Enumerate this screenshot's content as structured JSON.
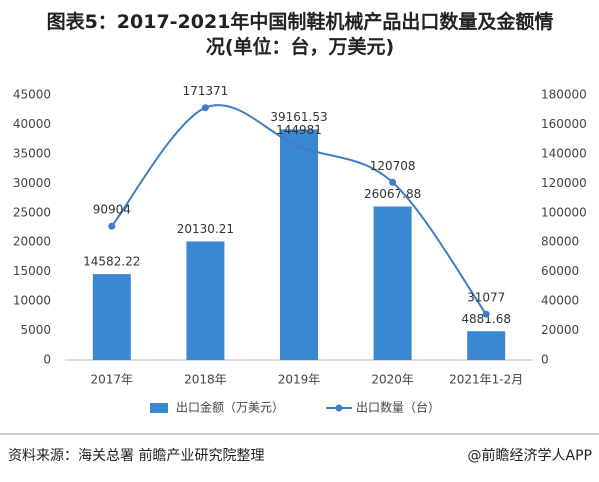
{
  "chart_data": {
    "type": "bar-line",
    "title": "图表5：2017-2021年中国制鞋机械产品出口数量及金额情况(单位：台，万美元)",
    "categories": [
      "2017年",
      "2018年",
      "2019年",
      "2020年",
      "2021年1-2月"
    ],
    "series": [
      {
        "name": "出口金额（万美元）",
        "type": "bar",
        "color": "#3a87d4",
        "values": [
          14582.22,
          20130.21,
          39161.53,
          26067.88,
          4881.68
        ]
      },
      {
        "name": "出口数量（台）",
        "type": "line",
        "axis": "y2",
        "color": "#3f7ec4",
        "values": [
          90904,
          171371,
          144981,
          120708,
          31077
        ]
      }
    ],
    "ylim": [
      0,
      45000
    ],
    "yticks": [
      0,
      5000,
      10000,
      15000,
      20000,
      25000,
      30000,
      35000,
      40000,
      45000
    ],
    "y2lim": [
      0,
      180000
    ],
    "y2ticks": [
      0,
      20000,
      40000,
      60000,
      80000,
      100000,
      120000,
      140000,
      160000,
      180000
    ],
    "legend": "bottom",
    "source": "资料来源：海关总署 前瞻产业研究院整理",
    "credit": "@前瞻经济学人APP"
  }
}
